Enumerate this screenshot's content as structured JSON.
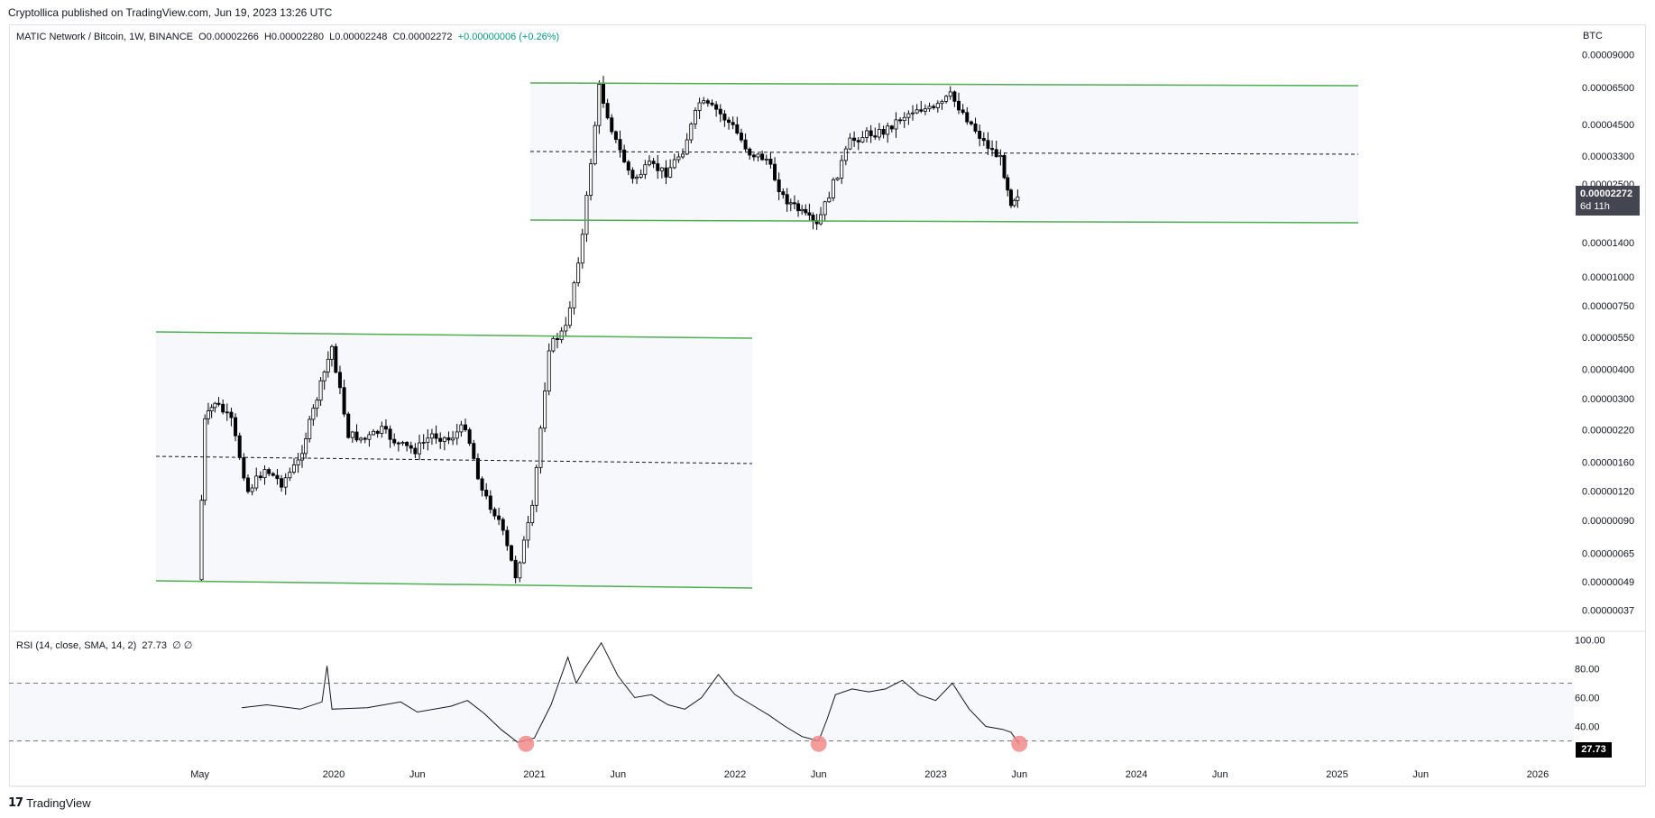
{
  "header": {
    "published": "Cryptollica published on TradingView.com, Jun 19, 2023 13:26 UTC"
  },
  "legend": {
    "symbol": "MATIC Network / Bitcoin, 1W, BINANCE",
    "o": "O0.00002266",
    "h": "H0.00002280",
    "l": "L0.00002248",
    "c": "C0.00002272",
    "change": "+0.00000006 (+0.26%)"
  },
  "rsi_legend": {
    "text": "RSI (14, close, SMA, 14, 2)",
    "value": "27.73",
    "extra": "∅ ∅"
  },
  "price_axis": {
    "unit": "BTC",
    "ticks": [
      "0.00009000",
      "0.00006500",
      "0.00004500",
      "0.00003300",
      "0.00002500",
      "0.00001400",
      "0.00001000",
      "0.00000750",
      "0.00000550",
      "0.00000400",
      "0.00000300",
      "0.00000220",
      "0.00000160",
      "0.00000120",
      "0.00000090",
      "0.00000065",
      "0.00000049",
      "0.00000037"
    ]
  },
  "price_tag": {
    "value": "0.00002272",
    "countdown": "6d 11h"
  },
  "rsi_axis": {
    "ticks": [
      "100.00",
      "80.00",
      "60.00",
      "40.00"
    ]
  },
  "rsi_tag": "27.73",
  "time_axis": [
    "May",
    "2020",
    "Jun",
    "2021",
    "Jun",
    "2022",
    "Jun",
    "2023",
    "Jun",
    "2024",
    "Jun",
    "2025",
    "Jun",
    "2026"
  ],
  "footer": {
    "brand": "TradingView"
  },
  "colors": {
    "up": "#089981",
    "candle": "#000000",
    "channel": "#4caf50",
    "zone": "#f0f3fa",
    "rsi_marker": "#f28b8b"
  },
  "chart_data": {
    "type": "candlestick",
    "symbol": "MATIC/BTC",
    "interval": "1W",
    "scale": "log",
    "y_unit": "BTC",
    "close_series_approx": [
      {
        "date": "2019-05",
        "close": 5e-07
      },
      {
        "date": "2019-06",
        "close": 2.9e-06
      },
      {
        "date": "2019-07",
        "close": 2.4e-06
      },
      {
        "date": "2019-08",
        "close": 1.2e-06
      },
      {
        "date": "2019-10",
        "close": 1.3e-06
      },
      {
        "date": "2020-01",
        "close": 5e-06
      },
      {
        "date": "2020-03",
        "close": 2e-06
      },
      {
        "date": "2020-06",
        "close": 1.8e-06
      },
      {
        "date": "2020-09",
        "close": 2.3e-06
      },
      {
        "date": "2020-11",
        "close": 9e-07
      },
      {
        "date": "2020-12",
        "close": 5.2e-07
      },
      {
        "date": "2021-02",
        "close": 5e-06
      },
      {
        "date": "2021-04",
        "close": 1.5e-05
      },
      {
        "date": "2021-05",
        "close": 6.5e-05
      },
      {
        "date": "2021-07",
        "close": 2.6e-05
      },
      {
        "date": "2021-11",
        "close": 5.6e-05
      },
      {
        "date": "2022-02",
        "close": 3.4e-05
      },
      {
        "date": "2022-06",
        "close": 1.65e-05
      },
      {
        "date": "2022-09",
        "close": 4.1e-05
      },
      {
        "date": "2022-12",
        "close": 5.3e-05
      },
      {
        "date": "2023-02",
        "close": 6e-05
      },
      {
        "date": "2023-05",
        "close": 3.2e-05
      },
      {
        "date": "2023-06",
        "close": 2.272e-05
      }
    ],
    "rsi": {
      "params": "14, close, SMA, 14, 2",
      "last": 27.73,
      "ylim": [
        20,
        100
      ],
      "bands": [
        30,
        70
      ],
      "oversold_markers": [
        "2020-12",
        "2022-06",
        "2023-06"
      ]
    }
  }
}
